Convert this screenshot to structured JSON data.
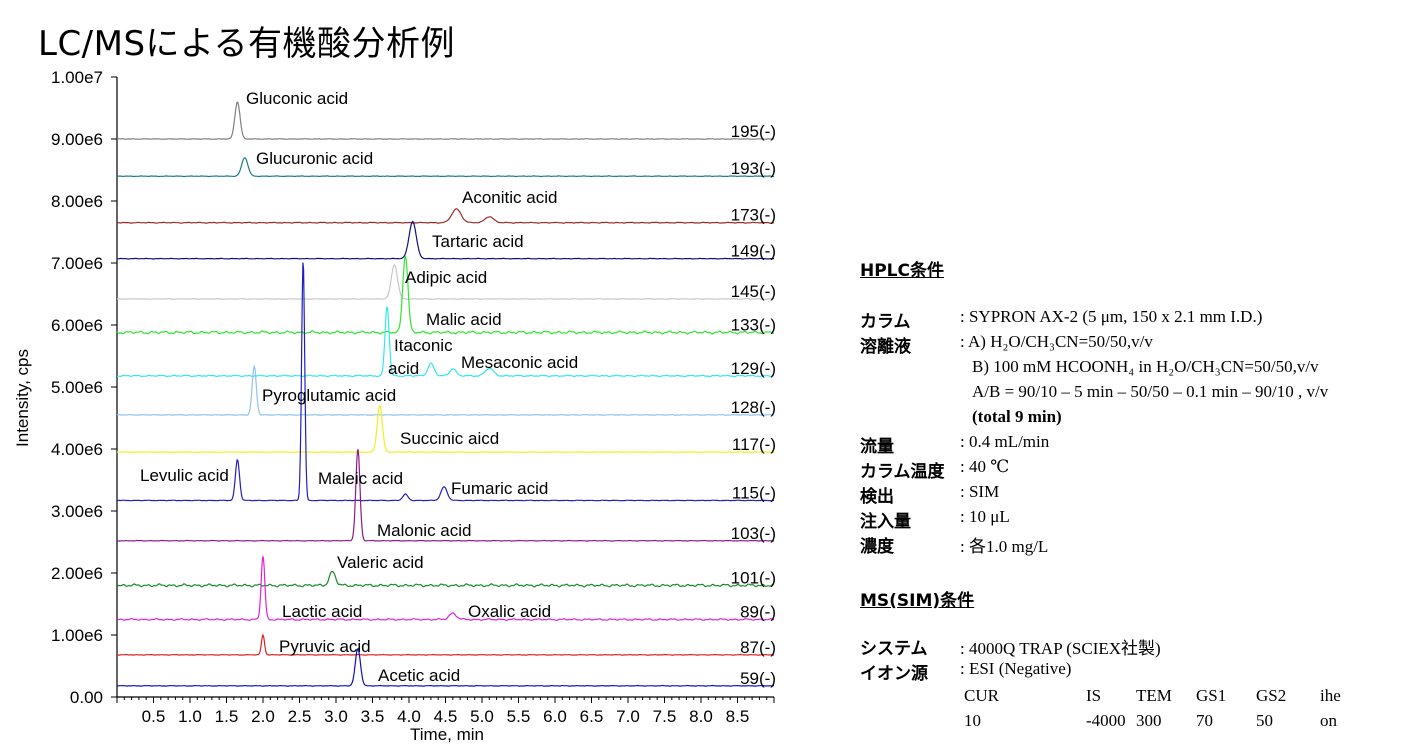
{
  "title": "LC/MSによる有機酸分析例",
  "chart_data": {
    "type": "line",
    "xlabel": "Time, min",
    "ylabel": "Intensity, cps",
    "xlim": [
      0,
      9.0
    ],
    "ylim": [
      0,
      10000000
    ],
    "x_ticks": [
      "0.5",
      "1.0",
      "1.5",
      "2.0",
      "2.5",
      "3.0",
      "3.5",
      "4.0",
      "4.5",
      "5.0",
      "5.5",
      "6.0",
      "6.5",
      "7.0",
      "7.5",
      "8.0",
      "8.5"
    ],
    "y_ticks": [
      "0.00",
      "1.00e6",
      "2.00e6",
      "3.00e6",
      "4.00e6",
      "5.00e6",
      "6.00e6",
      "7.00e6",
      "8.00e6",
      "9.00e6",
      "1.00e7"
    ],
    "series": [
      {
        "name": "Gluconic acid",
        "mz": "195(-)",
        "color": "#808080",
        "baseline": 9000000,
        "noise": 0.2,
        "peaks": [
          {
            "x": 1.65,
            "h": 600000,
            "w": 0.05
          }
        ]
      },
      {
        "name": "Glucuronic acid",
        "mz": "193(-)",
        "color": "#1a7a8a",
        "baseline": 8400000,
        "noise": 0.2,
        "peaks": [
          {
            "x": 1.75,
            "h": 300000,
            "w": 0.06
          }
        ]
      },
      {
        "name": "Aconitic acid",
        "mz": "173(-)",
        "color": "#9b2a2a",
        "baseline": 7650000,
        "noise": 0.3,
        "peaks": [
          {
            "x": 4.65,
            "h": 220000,
            "w": 0.09
          },
          {
            "x": 5.1,
            "h": 100000,
            "w": 0.08
          }
        ]
      },
      {
        "name": "Tartaric acid",
        "mz": "149(-)",
        "color": "#101080",
        "baseline": 7070000,
        "noise": 0.2,
        "peaks": [
          {
            "x": 4.05,
            "h": 600000,
            "w": 0.07
          }
        ]
      },
      {
        "name": "Adipic acid",
        "mz": "145(-)",
        "color": "#c8c8c8",
        "baseline": 6420000,
        "noise": 0.2,
        "peaks": [
          {
            "x": 3.8,
            "h": 550000,
            "w": 0.06
          }
        ]
      },
      {
        "name": "Malic acid",
        "mz": "133(-)",
        "color": "#2ee62e",
        "baseline": 5880000,
        "noise": 1.0,
        "peaks": [
          {
            "x": 3.95,
            "h": 1250000,
            "w": 0.05
          }
        ]
      },
      {
        "name": "Itaconic acid",
        "mz": "129(-)",
        "color": "#33e6f0",
        "baseline": 5180000,
        "noise": 0.5,
        "peaks": [
          {
            "x": 3.7,
            "h": 1120000,
            "w": 0.04
          },
          {
            "x": 4.3,
            "h": 200000,
            "w": 0.06
          },
          {
            "x": 4.6,
            "h": 120000,
            "w": 0.06
          },
          {
            "x": 5.1,
            "h": 120000,
            "w": 0.08
          }
        ]
      },
      {
        "name": "Mesaconic acid",
        "mz": "",
        "color": "#33e6f0",
        "baseline": 0,
        "noise": 0,
        "peaks": []
      },
      {
        "name": "Pyroglutamic acid",
        "mz": "128(-)",
        "color": "#8fc4ee",
        "baseline": 4550000,
        "noise": 0.2,
        "peaks": [
          {
            "x": 1.88,
            "h": 780000,
            "w": 0.04
          }
        ]
      },
      {
        "name": "Succinic aicd",
        "mz": "117(-)",
        "color": "#f0f020",
        "baseline": 3950000,
        "noise": 0.2,
        "peaks": [
          {
            "x": 3.6,
            "h": 750000,
            "w": 0.05
          }
        ]
      },
      {
        "name": "Levulic acid",
        "mz": "115(-)",
        "color": "#2020c0",
        "baseline": 3170000,
        "noise": 0.2,
        "peaks": [
          {
            "x": 1.65,
            "h": 660000,
            "w": 0.04
          },
          {
            "x": 2.55,
            "h": 3880000,
            "w": 0.03
          },
          {
            "x": 3.95,
            "h": 100000,
            "w": 0.05
          },
          {
            "x": 4.48,
            "h": 220000,
            "w": 0.06
          }
        ]
      },
      {
        "name": "Maleic acid",
        "mz": "",
        "color": "#2020c0",
        "baseline": 0,
        "noise": 0,
        "peaks": []
      },
      {
        "name": "Fumaric acid",
        "mz": "",
        "color": "#2020c0",
        "baseline": 0,
        "noise": 0,
        "peaks": []
      },
      {
        "name": "Malonic acid",
        "mz": "103(-)",
        "color": "#8a1a8a",
        "baseline": 2520000,
        "noise": 0.2,
        "peaks": [
          {
            "x": 3.3,
            "h": 1480000,
            "w": 0.04
          }
        ]
      },
      {
        "name": "Valeric acid",
        "mz": "101(-)",
        "color": "#1a8a2a",
        "baseline": 1800000,
        "noise": 1.0,
        "peaks": [
          {
            "x": 2.95,
            "h": 220000,
            "w": 0.06
          }
        ]
      },
      {
        "name": "Lactic acid",
        "mz": "89(-)",
        "color": "#e020e0",
        "baseline": 1250000,
        "noise": 0.6,
        "peaks": [
          {
            "x": 2.0,
            "h": 1020000,
            "w": 0.035
          },
          {
            "x": 4.6,
            "h": 100000,
            "w": 0.07
          }
        ]
      },
      {
        "name": "Oxalic acid",
        "mz": "",
        "color": "#e020e0",
        "baseline": 0,
        "noise": 0,
        "peaks": []
      },
      {
        "name": "Pyruvic acid",
        "mz": "87(-)",
        "color": "#e02020",
        "baseline": 680000,
        "noise": 0.2,
        "peaks": [
          {
            "x": 2.0,
            "h": 320000,
            "w": 0.03
          }
        ]
      },
      {
        "name": "Acetic acid",
        "mz": "59(-)",
        "color": "#1010c0",
        "baseline": 180000,
        "noise": 0.2,
        "peaks": [
          {
            "x": 3.3,
            "h": 600000,
            "w": 0.05
          }
        ]
      }
    ]
  },
  "hplc": {
    "heading": "HPLC条件",
    "rows": [
      {
        "label": "カラム",
        "value": ": SYPRON AX-2 (5 μm, 150 x 2.1 mm I.D.)"
      },
      {
        "label": "溶離液",
        "value": ": A) H₂O/CH₃CN=50/50,v/v"
      },
      {
        "label": "",
        "value": "B) 100 mM HCOONH₄  in H₂O/CH₃CN=50/50,v/v"
      },
      {
        "label": "",
        "value": "A/B = 90/10 – 5 min – 50/50 – 0.1 min – 90/10 , v/v"
      },
      {
        "label": "",
        "value": "(total 9 min)"
      },
      {
        "label": "流量",
        "value": ": 0.4 mL/min"
      },
      {
        "label": "カラム温度",
        "value": "  : 40 ℃"
      },
      {
        "label": "検出",
        "value": ": SIM"
      },
      {
        "label": "注入量",
        "value": ": 10 μL"
      },
      {
        "label": "濃度",
        "value": ": 各1.0 mg/L"
      }
    ]
  },
  "ms": {
    "heading": "MS(SIM)条件",
    "rows": [
      {
        "label": "システム",
        "value": ": 4000Q TRAP (SCIEX社製)"
      },
      {
        "label": "イオン源",
        "value": ":  ESI (Negative)"
      }
    ],
    "params_header": [
      "CUR",
      "IS",
      "TEM",
      "GS1",
      "GS2",
      "ihe"
    ],
    "params_values": [
      "10",
      "-4000",
      "300",
      "70",
      "50",
      "on"
    ]
  }
}
